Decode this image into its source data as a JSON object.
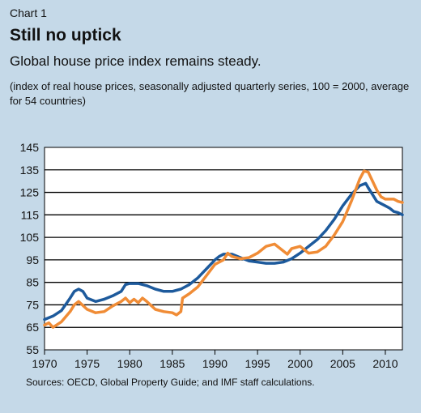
{
  "header": {
    "label": "Chart 1",
    "title": "Still no uptick",
    "subtitle": "Global house price index remains steady.",
    "note": "(index of real house prices, seasonally adjusted quarterly series, 100 = 2000, average for 54 countries)"
  },
  "source": "Sources: OECD, Global Property Guide; and IMF staff calculations.",
  "colors": {
    "blue": "#1d5a9c",
    "orange": "#f08c36",
    "plot_bg": "#ffffff",
    "page_bg": "#c5d9e8"
  },
  "chart_data": {
    "type": "line",
    "title": "",
    "xlabel": "",
    "ylabel": "",
    "xlim": [
      1970,
      2012
    ],
    "ylim": [
      55,
      145
    ],
    "yticks": [
      55,
      65,
      75,
      85,
      95,
      105,
      115,
      125,
      135,
      145
    ],
    "xticks": [
      1970,
      1975,
      1980,
      1985,
      1990,
      1995,
      2000,
      2005,
      2010
    ],
    "grid": "horizontal",
    "series": [
      {
        "color": "#1d5a9c",
        "points": [
          [
            1970,
            68.5
          ],
          [
            1971,
            70
          ],
          [
            1972,
            72.5
          ],
          [
            1973,
            78
          ],
          [
            1973.5,
            81
          ],
          [
            1974,
            82
          ],
          [
            1974.5,
            81
          ],
          [
            1975,
            78
          ],
          [
            1976,
            76.5
          ],
          [
            1977,
            77.5
          ],
          [
            1978,
            79
          ],
          [
            1979,
            81
          ],
          [
            1979.5,
            84
          ],
          [
            1980,
            84.5
          ],
          [
            1981,
            84.5
          ],
          [
            1982,
            83.5
          ],
          [
            1983,
            82
          ],
          [
            1984,
            81
          ],
          [
            1985,
            81
          ],
          [
            1986,
            82
          ],
          [
            1987,
            84
          ],
          [
            1988,
            87
          ],
          [
            1989,
            91
          ],
          [
            1990,
            95
          ],
          [
            1990.5,
            96.5
          ],
          [
            1991,
            97.5
          ],
          [
            1992,
            97.5
          ],
          [
            1993,
            96
          ],
          [
            1994,
            94.5
          ],
          [
            1995,
            94
          ],
          [
            1996,
            93.5
          ],
          [
            1997,
            93.5
          ],
          [
            1998,
            94
          ],
          [
            1999,
            95.5
          ],
          [
            2000,
            98
          ],
          [
            2001,
            101
          ],
          [
            2002,
            104
          ],
          [
            2003,
            108
          ],
          [
            2004,
            113
          ],
          [
            2005,
            119
          ],
          [
            2006,
            124
          ],
          [
            2007,
            128
          ],
          [
            2007.7,
            129
          ],
          [
            2008,
            127
          ],
          [
            2008.5,
            124
          ],
          [
            2009,
            121
          ],
          [
            2010,
            119
          ],
          [
            2010.5,
            118
          ],
          [
            2011,
            116.5
          ],
          [
            2011.5,
            116
          ],
          [
            2012,
            115
          ]
        ]
      },
      {
        "color": "#f08c36",
        "points": [
          [
            1970,
            66
          ],
          [
            1970.5,
            67
          ],
          [
            1971,
            65
          ],
          [
            1972,
            67.5
          ],
          [
            1973,
            72
          ],
          [
            1973.5,
            75
          ],
          [
            1974,
            76.5
          ],
          [
            1975,
            73
          ],
          [
            1976,
            71.5
          ],
          [
            1977,
            72
          ],
          [
            1978,
            74.5
          ],
          [
            1979,
            76.5
          ],
          [
            1979.5,
            78
          ],
          [
            1980,
            76
          ],
          [
            1980.5,
            77.5
          ],
          [
            1981,
            76
          ],
          [
            1981.5,
            78
          ],
          [
            1982,
            76.5
          ],
          [
            1983,
            73
          ],
          [
            1984,
            72
          ],
          [
            1985,
            71.5
          ],
          [
            1985.5,
            70.5
          ],
          [
            1986,
            72
          ],
          [
            1986.2,
            78
          ],
          [
            1987,
            80
          ],
          [
            1988,
            83
          ],
          [
            1989,
            88
          ],
          [
            1990,
            93
          ],
          [
            1991,
            95
          ],
          [
            1991.5,
            98
          ],
          [
            1992,
            96.5
          ],
          [
            1993,
            95.5
          ],
          [
            1994,
            96
          ],
          [
            1995,
            98
          ],
          [
            1996,
            101
          ],
          [
            1997,
            102
          ],
          [
            1998,
            99
          ],
          [
            1998.5,
            97.5
          ],
          [
            1999,
            100
          ],
          [
            2000,
            101
          ],
          [
            2001,
            98
          ],
          [
            2002,
            98.5
          ],
          [
            2003,
            101
          ],
          [
            2004,
            106
          ],
          [
            2005,
            112
          ],
          [
            2006,
            121
          ],
          [
            2007,
            131
          ],
          [
            2007.5,
            134.5
          ],
          [
            2008,
            134
          ],
          [
            2009,
            126
          ],
          [
            2009.5,
            123
          ],
          [
            2010,
            122
          ],
          [
            2011,
            122
          ],
          [
            2011.5,
            121
          ],
          [
            2012,
            120.5
          ]
        ]
      }
    ]
  }
}
